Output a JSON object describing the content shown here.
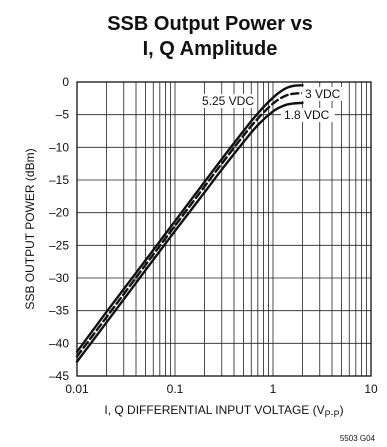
{
  "chart_data": {
    "type": "line",
    "title_lines": [
      "SSB Output Power vs",
      "I, Q Amplitude"
    ],
    "xlabel_main": "I, Q DIFFERENTIAL INPUT VOLTAGE (V",
    "xlabel_sub": "P-P",
    "xlabel_end": ")",
    "ylabel": "SSB OUTPUT POWER (dBm)",
    "x_scale": "log",
    "xlim": [
      0.01,
      10
    ],
    "ylim": [
      -45,
      0
    ],
    "grid": true,
    "x_ticks": [
      {
        "value": 0.01,
        "label": "0.01"
      },
      {
        "value": 0.1,
        "label": "0.1"
      },
      {
        "value": 1,
        "label": "1"
      },
      {
        "value": 10,
        "label": "10"
      }
    ],
    "y_ticks": [
      {
        "value": 0,
        "label": "0"
      },
      {
        "value": -5,
        "label": "–5"
      },
      {
        "value": -10,
        "label": "–10"
      },
      {
        "value": -15,
        "label": "–15"
      },
      {
        "value": -20,
        "label": "–20"
      },
      {
        "value": -25,
        "label": "–25"
      },
      {
        "value": -30,
        "label": "–30"
      },
      {
        "value": -35,
        "label": "–35"
      },
      {
        "value": -40,
        "label": "–40"
      },
      {
        "value": -45,
        "label": "–45"
      }
    ],
    "series": [
      {
        "name": "5.25 VDC",
        "style": "solid",
        "x": [
          0.01,
          0.02,
          0.05,
          0.1,
          0.2,
          0.3,
          0.5,
          0.7,
          1.0,
          1.3,
          1.6,
          2.0
        ],
        "y": [
          -41.3,
          -35.2,
          -27.3,
          -21.3,
          -15.3,
          -11.8,
          -7.5,
          -4.8,
          -2.4,
          -1.1,
          -0.6,
          -0.5
        ]
      },
      {
        "name": "3 VDC",
        "style": "dashed",
        "x": [
          0.01,
          0.02,
          0.05,
          0.1,
          0.2,
          0.3,
          0.5,
          0.7,
          1.0,
          1.3,
          1.6,
          2.0
        ],
        "y": [
          -42.0,
          -36.0,
          -28.0,
          -22.0,
          -16.0,
          -12.5,
          -8.2,
          -5.6,
          -3.3,
          -2.2,
          -1.8,
          -1.7
        ]
      },
      {
        "name": "1.8 VDC",
        "style": "solid",
        "x": [
          0.01,
          0.02,
          0.05,
          0.1,
          0.2,
          0.3,
          0.5,
          0.7,
          1.0,
          1.3,
          1.6,
          2.0
        ],
        "y": [
          -42.8,
          -36.8,
          -28.8,
          -22.8,
          -16.9,
          -13.4,
          -9.2,
          -6.6,
          -4.5,
          -3.6,
          -3.3,
          -3.2
        ]
      }
    ],
    "series_labels": [
      "5.25 VDC",
      "3 VDC",
      "1.8 VDC"
    ],
    "footnote": "5503 G04"
  }
}
